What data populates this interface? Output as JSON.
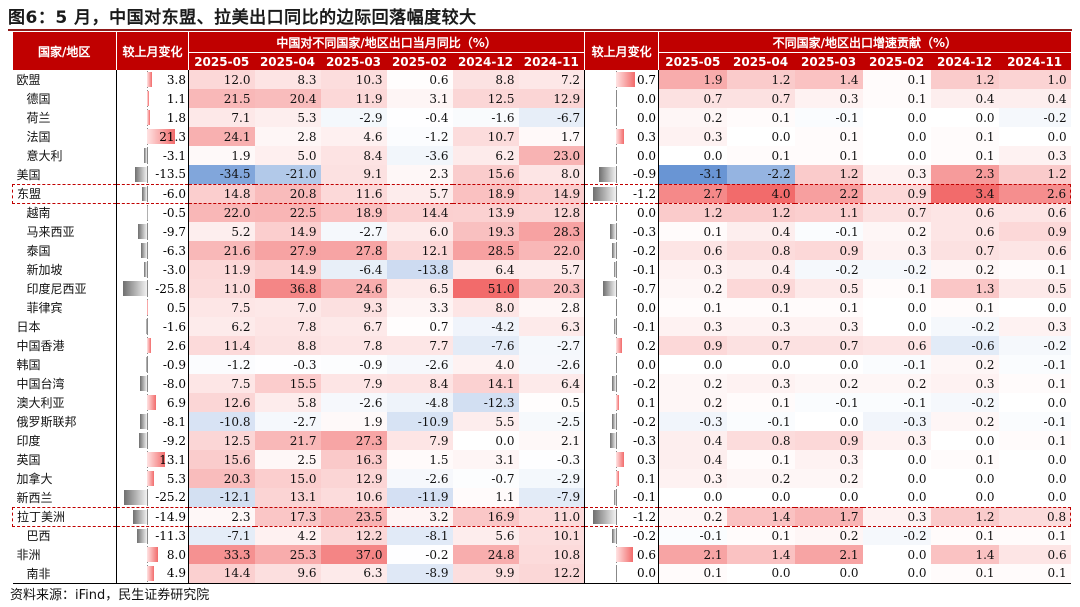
{
  "title": "图6：5 月，中国对东盟、拉美出口同比的边际回落幅度较大",
  "source": "资料来源：iFind，民生证券研究院",
  "headers": {
    "region": "国家/地区",
    "mom1": "较上月变化",
    "group1": "中国对不同国家/地区出口当月同比（%）",
    "mom2": "较上月变化",
    "group2": "不同国家/地区出口增速贡献（%）",
    "months": [
      "2025-05",
      "2025-04",
      "2025-03",
      "2025-02",
      "2024-12",
      "2024-11"
    ]
  },
  "colors": {
    "header_bg": "#c00000",
    "pos_strong": "#f26b6b",
    "neg_strong": "#5b8bd0",
    "highlight_border": "#c00000"
  },
  "rows": [
    {
      "name": "欧盟",
      "sub": false,
      "mom1": "3.8",
      "yoy": [
        "12.0",
        "8.3",
        "10.3",
        "0.6",
        "8.8",
        "7.2"
      ],
      "mom2": "0.7",
      "contrib": [
        "1.9",
        "1.2",
        "1.4",
        "0.1",
        "1.2",
        "1.0"
      ]
    },
    {
      "name": "德国",
      "sub": true,
      "mom1": "1.1",
      "yoy": [
        "21.5",
        "20.4",
        "11.9",
        "3.1",
        "12.5",
        "12.9"
      ],
      "mom2": "0.0",
      "contrib": [
        "0.7",
        "0.7",
        "0.3",
        "0.1",
        "0.4",
        "0.4"
      ]
    },
    {
      "name": "荷兰",
      "sub": true,
      "mom1": "1.8",
      "yoy": [
        "7.1",
        "5.3",
        "-2.9",
        "-0.4",
        "-1.6",
        "-6.7"
      ],
      "mom2": "0.0",
      "contrib": [
        "0.2",
        "0.1",
        "-0.1",
        "0.0",
        "0.0",
        "-0.2"
      ]
    },
    {
      "name": "法国",
      "sub": true,
      "mom1": "21.3",
      "yoy": [
        "24.1",
        "2.8",
        "4.6",
        "-1.2",
        "10.7",
        "1.7"
      ],
      "mom2": "0.3",
      "contrib": [
        "0.3",
        "0.0",
        "0.1",
        "0.0",
        "0.1",
        "0.0"
      ]
    },
    {
      "name": "意大利",
      "sub": true,
      "mom1": "-3.1",
      "yoy": [
        "1.9",
        "5.0",
        "8.4",
        "-3.6",
        "6.2",
        "23.0"
      ],
      "mom2": "0.0",
      "contrib": [
        "0.0",
        "0.1",
        "0.1",
        "0.0",
        "0.1",
        "0.3"
      ]
    },
    {
      "name": "美国",
      "sub": false,
      "mom1": "-13.5",
      "yoy": [
        "-34.5",
        "-21.0",
        "9.1",
        "2.3",
        "15.6",
        "8.0"
      ],
      "mom2": "-0.9",
      "contrib": [
        "-3.1",
        "-2.2",
        "1.2",
        "0.3",
        "2.3",
        "1.2"
      ]
    },
    {
      "name": "东盟",
      "sub": false,
      "hl": true,
      "mom1": "-6.0",
      "yoy": [
        "14.8",
        "20.8",
        "11.6",
        "5.7",
        "18.9",
        "14.9"
      ],
      "mom2": "-1.2",
      "contrib": [
        "2.7",
        "4.0",
        "2.2",
        "0.9",
        "3.4",
        "2.6"
      ]
    },
    {
      "name": "越南",
      "sub": true,
      "mom1": "-0.5",
      "yoy": [
        "22.0",
        "22.5",
        "18.9",
        "14.4",
        "13.9",
        "12.8"
      ],
      "mom2": "0.0",
      "contrib": [
        "1.2",
        "1.2",
        "1.1",
        "0.7",
        "0.6",
        "0.6"
      ]
    },
    {
      "name": "马来西亚",
      "sub": true,
      "mom1": "-9.7",
      "yoy": [
        "5.2",
        "14.9",
        "-2.7",
        "6.0",
        "19.3",
        "28.3"
      ],
      "mom2": "-0.3",
      "contrib": [
        "0.1",
        "0.4",
        "-0.1",
        "0.2",
        "0.6",
        "0.9"
      ]
    },
    {
      "name": "泰国",
      "sub": true,
      "mom1": "-6.3",
      "yoy": [
        "21.6",
        "27.9",
        "27.8",
        "12.1",
        "28.5",
        "22.0"
      ],
      "mom2": "-0.2",
      "contrib": [
        "0.6",
        "0.8",
        "0.9",
        "0.3",
        "0.7",
        "0.6"
      ]
    },
    {
      "name": "新加坡",
      "sub": true,
      "mom1": "-3.0",
      "yoy": [
        "11.9",
        "14.9",
        "-6.4",
        "-13.8",
        "6.4",
        "5.7"
      ],
      "mom2": "-0.1",
      "contrib": [
        "0.3",
        "0.4",
        "-0.2",
        "-0.2",
        "0.2",
        "0.1"
      ]
    },
    {
      "name": "印度尼西亚",
      "sub": true,
      "mom1": "-25.8",
      "yoy": [
        "11.0",
        "36.8",
        "24.6",
        "6.5",
        "51.0",
        "20.3"
      ],
      "mom2": "-0.7",
      "contrib": [
        "0.2",
        "0.9",
        "0.5",
        "0.1",
        "1.3",
        "0.5"
      ]
    },
    {
      "name": "菲律宾",
      "sub": true,
      "mom1": "0.5",
      "yoy": [
        "7.5",
        "7.0",
        "9.3",
        "3.3",
        "8.0",
        "2.8"
      ],
      "mom2": "0.0",
      "contrib": [
        "0.1",
        "0.1",
        "0.1",
        "0.0",
        "0.1",
        "0.0"
      ]
    },
    {
      "name": "日本",
      "sub": false,
      "mom1": "-1.6",
      "yoy": [
        "6.2",
        "7.8",
        "6.7",
        "0.7",
        "-4.2",
        "6.3"
      ],
      "mom2": "-0.1",
      "contrib": [
        "0.3",
        "0.3",
        "0.3",
        "0.0",
        "-0.2",
        "0.3"
      ]
    },
    {
      "name": "中国香港",
      "sub": false,
      "mom1": "2.6",
      "yoy": [
        "11.4",
        "8.8",
        "7.8",
        "7.7",
        "-7.6",
        "-2.7"
      ],
      "mom2": "0.2",
      "contrib": [
        "0.9",
        "0.7",
        "0.7",
        "0.6",
        "-0.6",
        "-0.2"
      ]
    },
    {
      "name": "韩国",
      "sub": false,
      "mom1": "-0.9",
      "yoy": [
        "-1.2",
        "-0.3",
        "-0.9",
        "-2.6",
        "4.0",
        "-2.6"
      ],
      "mom2": "0.0",
      "contrib": [
        "0.0",
        "0.0",
        "0.0",
        "-0.1",
        "0.2",
        "-0.1"
      ]
    },
    {
      "name": "中国台湾",
      "sub": false,
      "mom1": "-8.0",
      "yoy": [
        "7.5",
        "15.5",
        "7.9",
        "8.4",
        "14.1",
        "6.4"
      ],
      "mom2": "-0.2",
      "contrib": [
        "0.2",
        "0.3",
        "0.2",
        "0.2",
        "0.3",
        "0.1"
      ]
    },
    {
      "name": "澳大利亚",
      "sub": false,
      "mom1": "6.9",
      "yoy": [
        "12.6",
        "5.8",
        "-2.6",
        "-4.8",
        "-12.3",
        "0.5"
      ],
      "mom2": "0.1",
      "contrib": [
        "0.2",
        "0.1",
        "-0.1",
        "-0.1",
        "-0.2",
        "0.0"
      ]
    },
    {
      "name": "俄罗斯联邦",
      "sub": false,
      "mom1": "-8.1",
      "yoy": [
        "-10.8",
        "-2.7",
        "1.9",
        "-10.9",
        "5.5",
        "-2.5"
      ],
      "mom2": "-0.2",
      "contrib": [
        "-0.3",
        "-0.1",
        "0.0",
        "-0.3",
        "0.2",
        "-0.1"
      ]
    },
    {
      "name": "印度",
      "sub": false,
      "mom1": "-9.2",
      "yoy": [
        "12.5",
        "21.7",
        "27.3",
        "7.9",
        "0.0",
        "2.1"
      ],
      "mom2": "-0.3",
      "contrib": [
        "0.4",
        "0.8",
        "0.9",
        "0.3",
        "0.0",
        "0.1"
      ]
    },
    {
      "name": "英国",
      "sub": false,
      "mom1": "13.1",
      "yoy": [
        "15.6",
        "2.5",
        "16.3",
        "1.5",
        "3.1",
        "-0.3"
      ],
      "mom2": "0.3",
      "contrib": [
        "0.4",
        "0.1",
        "0.3",
        "0.0",
        "0.1",
        "0.0"
      ]
    },
    {
      "name": "加拿大",
      "sub": false,
      "mom1": "5.3",
      "yoy": [
        "20.3",
        "15.0",
        "12.9",
        "-2.6",
        "-0.7",
        "-2.9"
      ],
      "mom2": "0.1",
      "contrib": [
        "0.3",
        "0.2",
        "0.2",
        "0.0",
        "0.0",
        "0.0"
      ]
    },
    {
      "name": "新西兰",
      "sub": false,
      "mom1": "-25.2",
      "yoy": [
        "-12.1",
        "13.1",
        "10.6",
        "-11.9",
        "1.1",
        "-7.9"
      ],
      "mom2": "-0.1",
      "contrib": [
        "0.0",
        "0.0",
        "0.0",
        "0.0",
        "0.0",
        "0.0"
      ]
    },
    {
      "name": "拉丁美洲",
      "sub": false,
      "hl": true,
      "mom1": "-14.9",
      "yoy": [
        "2.3",
        "17.3",
        "23.5",
        "3.2",
        "16.9",
        "11.0"
      ],
      "mom2": "-1.2",
      "contrib": [
        "0.2",
        "1.4",
        "1.7",
        "0.3",
        "1.2",
        "0.8"
      ]
    },
    {
      "name": "巴西",
      "sub": true,
      "mom1": "-11.3",
      "yoy": [
        "-7.1",
        "4.2",
        "12.2",
        "-8.1",
        "5.6",
        "10.1"
      ],
      "mom2": "-0.2",
      "contrib": [
        "-0.1",
        "0.1",
        "0.2",
        "-0.2",
        "0.1",
        "0.1"
      ]
    },
    {
      "name": "非洲",
      "sub": false,
      "mom1": "8.0",
      "yoy": [
        "33.3",
        "25.3",
        "37.0",
        "-0.2",
        "24.8",
        "10.8"
      ],
      "mom2": "0.6",
      "contrib": [
        "2.1",
        "1.4",
        "2.1",
        "0.0",
        "1.4",
        "0.6"
      ]
    },
    {
      "name": "南非",
      "sub": true,
      "mom1": "4.9",
      "yoy": [
        "14.4",
        "9.6",
        "6.3",
        "-8.9",
        "9.9",
        "12.2"
      ],
      "mom2": "0.0",
      "contrib": [
        "0.1",
        "0.0",
        "0.0",
        "0.0",
        "0.1",
        "0.1"
      ]
    }
  ]
}
